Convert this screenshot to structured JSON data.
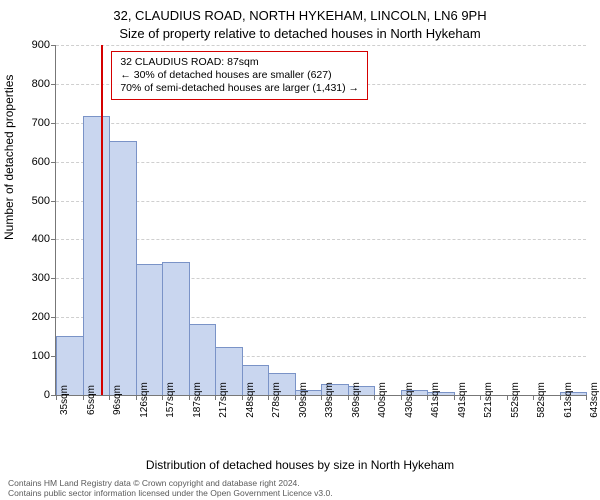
{
  "title_line1": "32, CLAUDIUS ROAD, NORTH HYKEHAM, LINCOLN, LN6 9PH",
  "title_line2": "Size of property relative to detached houses in North Hykeham",
  "ylabel": "Number of detached properties",
  "xlabel": "Distribution of detached houses by size in North Hykeham",
  "footer_line1": "Contains HM Land Registry data © Crown copyright and database right 2024.",
  "footer_line2": "Contains public sector information licensed under the Open Government Licence v3.0.",
  "chart": {
    "type": "histogram",
    "background_color": "#ffffff",
    "grid_color": "#cfcfcf",
    "axis_color": "#777777",
    "bar_fill": "#c9d6ef",
    "bar_stroke": "#7a93c7",
    "ref_line_color": "#d40000",
    "ref_line_x_value": 87,
    "ylim": [
      0,
      900
    ],
    "ytick_step": 100,
    "x_start": 35,
    "x_bin_width": 30.4,
    "x_tick_labels": [
      "35sqm",
      "65sqm",
      "96sqm",
      "126sqm",
      "157sqm",
      "187sqm",
      "217sqm",
      "248sqm",
      "278sqm",
      "309sqm",
      "339sqm",
      "369sqm",
      "400sqm",
      "430sqm",
      "461sqm",
      "491sqm",
      "521sqm",
      "552sqm",
      "582sqm",
      "613sqm",
      "643sqm"
    ],
    "bars": [
      150,
      715,
      650,
      335,
      340,
      180,
      120,
      75,
      55,
      10,
      25,
      20,
      0,
      10,
      5,
      0,
      0,
      0,
      0,
      5
    ]
  },
  "annotation": {
    "line1": "32 CLAUDIUS ROAD: 87sqm",
    "line2": "← 30% of detached houses are smaller (627)",
    "line3": "70% of semi-detached houses are larger (1,431) →"
  },
  "fonts": {
    "title_size_pt": 13,
    "label_size_pt": 12,
    "tick_size_pt": 10,
    "annotation_size_pt": 10.5,
    "footer_size_pt": 8.5
  }
}
